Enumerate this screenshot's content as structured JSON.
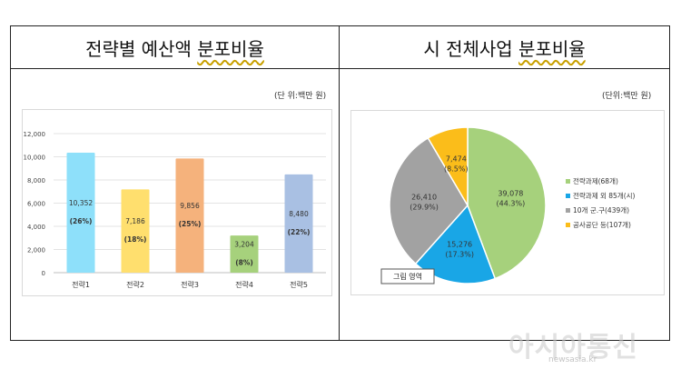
{
  "left_title_a": "전략별 예산액",
  "left_title_b": "분포비율",
  "right_title_a": "시 전체사업",
  "right_title_b": "분포비율",
  "unit_left": "(단 위:백만 원)",
  "unit_right": "(단위:백만 원)",
  "tooltip": "그림 영역",
  "watermark": "아시아통신",
  "watermark_sub": "newsasia.kr",
  "chart_data": [
    {
      "type": "bar",
      "categories": [
        "전략1",
        "전략2",
        "전략3",
        "전략4",
        "전략5"
      ],
      "values": [
        10352,
        7186,
        9856,
        3204,
        8480
      ],
      "value_labels": [
        "10,352",
        "7,186",
        "9,856",
        "3,204",
        "8,480"
      ],
      "percent_labels": [
        "(26%)",
        "(18%)",
        "(25%)",
        "(8%)",
        "(22%)"
      ],
      "colors": [
        "#8ee0fa",
        "#ffdf6e",
        "#f5b27c",
        "#a6d17c",
        "#a9c0e3"
      ],
      "yticks": [
        "0",
        "2,000",
        "4,000",
        "6,000",
        "8,000",
        "10,000",
        "12,000"
      ],
      "ylim": [
        0,
        12000
      ]
    },
    {
      "type": "pie",
      "labels": [
        "전략과제(68개)",
        "전략과제 외 85개(시)",
        "10개 군.구(439개)",
        "공사공단 등(107개)"
      ],
      "values": [
        39078,
        15276,
        26410,
        7474
      ],
      "value_labels": [
        "39,078",
        "15,276",
        "26,410",
        "7,474"
      ],
      "percent_labels": [
        "(44.3%)",
        "(17.3%)",
        "(29.9%)",
        "(8.5%)"
      ],
      "colors": [
        "#a6d17c",
        "#19a6e6",
        "#a2a2a2",
        "#fbbd1a"
      ]
    }
  ]
}
